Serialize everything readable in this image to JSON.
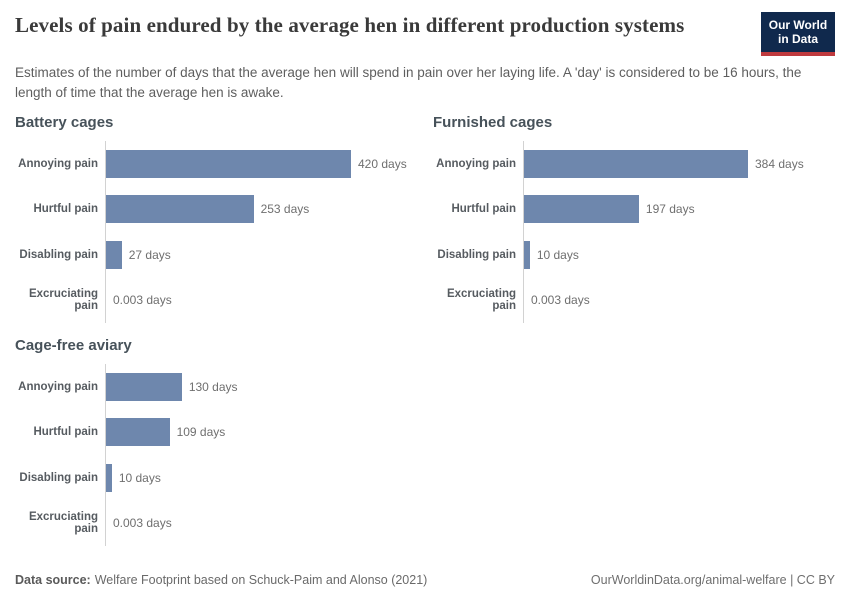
{
  "header": {
    "title": "Levels of pain endured by the average hen in different production systems",
    "subtitle": "Estimates of the number of days that the average hen will spend in pain over her laying life. A 'day' is considered to be 16 hours, the length of time that the average hen is awake.",
    "logo": {
      "line1": "Our World",
      "line2": "in Data"
    }
  },
  "footer": {
    "datasource_label": "Data source:",
    "datasource_value": "Welfare Footprint based on Schuck-Paim and Alonso (2021)",
    "credit": "OurWorldinData.org/animal-welfare | CC BY"
  },
  "colors": {
    "bar": "#6e87ad",
    "axis": "#d2d2d2",
    "logo_bg": "#10294d",
    "logo_underline": "#bf3a3e"
  },
  "chart_data": [
    {
      "type": "bar",
      "orientation": "horizontal",
      "title": "Battery cages",
      "categories": [
        "Annoying pain",
        "Hurtful pain",
        "Disabling pain",
        "Excruciating pain"
      ],
      "values": [
        420,
        253,
        27,
        0.003
      ],
      "value_labels": [
        "420 days",
        "253 days",
        "27 days",
        "0.003 days"
      ],
      "unit": "days",
      "xlim": [
        0,
        420
      ],
      "grid": false,
      "legend": "none"
    },
    {
      "type": "bar",
      "orientation": "horizontal",
      "title": "Furnished cages",
      "categories": [
        "Annoying pain",
        "Hurtful pain",
        "Disabling pain",
        "Excruciating pain"
      ],
      "values": [
        384,
        197,
        10,
        0.003
      ],
      "value_labels": [
        "384 days",
        "197 days",
        "10 days",
        "0.003 days"
      ],
      "unit": "days",
      "xlim": [
        0,
        420
      ],
      "grid": false,
      "legend": "none"
    },
    {
      "type": "bar",
      "orientation": "horizontal",
      "title": "Cage-free aviary",
      "categories": [
        "Annoying pain",
        "Hurtful pain",
        "Disabling pain",
        "Excruciating pain"
      ],
      "values": [
        130,
        109,
        10,
        0.003
      ],
      "value_labels": [
        "130 days",
        "109 days",
        "10 days",
        "0.003 days"
      ],
      "unit": "days",
      "xlim": [
        0,
        420
      ],
      "grid": false,
      "legend": "none"
    }
  ]
}
